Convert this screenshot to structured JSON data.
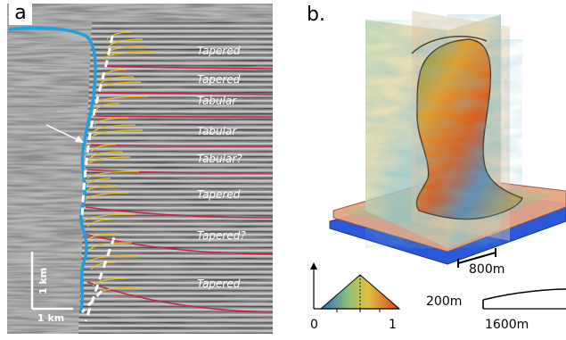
{
  "panel_a": {
    "label": "a",
    "facies_labels": [
      "Tapered",
      "Tapered",
      "Tabular",
      "Tabular",
      "Tabular?",
      "Tapered",
      "Tapered?",
      "Tapered"
    ],
    "scale_vertical": "1 km",
    "scale_horizontal": "1 km"
  },
  "panel_b": {
    "label": "b.",
    "scale_800": "800m",
    "scale_200": "200m",
    "scale_1600": "1600m",
    "colorbar_ticks": [
      "0",
      "1"
    ]
  },
  "colors": {
    "fault_blue": "#1fa0e0",
    "horizon_red": "#c8284a",
    "reflector_yellow": "#e8c020",
    "dashed_white": "#ffffff"
  }
}
